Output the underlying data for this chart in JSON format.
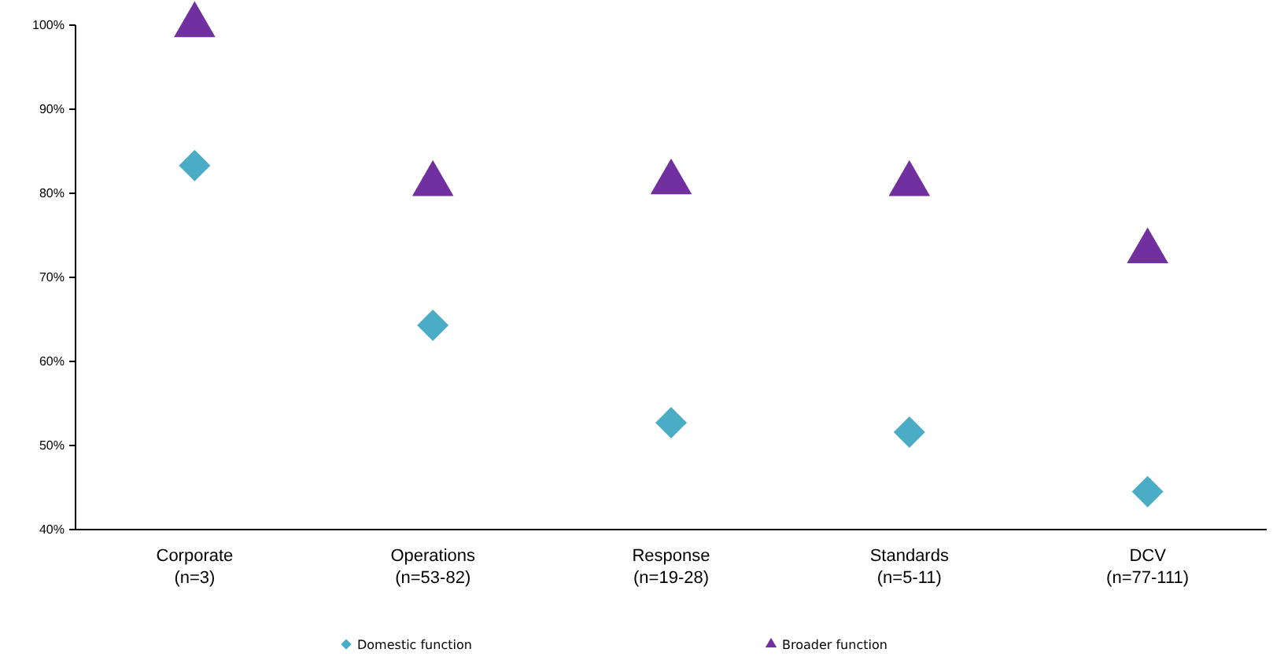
{
  "chart_data": {
    "type": "scatter",
    "categories": [
      "Corporate\n(n=3)",
      "Operations\n(n=53-82)",
      "Response\n(n=19-28)",
      "Standards\n(n=5-11)",
      "DCV\n(n=77-111)"
    ],
    "series": [
      {
        "name": "Domestic function",
        "color": "#4bacc6",
        "marker": "diamond",
        "values": [
          83.3,
          64.3,
          52.7,
          51.6,
          44.5
        ]
      },
      {
        "name": "Broader function",
        "color": "#7030a0",
        "marker": "triangle",
        "values": [
          100,
          81.1,
          81.3,
          81.1,
          73.1
        ]
      }
    ],
    "ylim": [
      40,
      100
    ],
    "yticks": [
      {
        "value": 40,
        "label": "40%"
      },
      {
        "value": 50,
        "label": "50%"
      },
      {
        "value": 60,
        "label": "60%"
      },
      {
        "value": 70,
        "label": "70%"
      },
      {
        "value": 80,
        "label": "80%"
      },
      {
        "value": 90,
        "label": "90%"
      },
      {
        "value": 100,
        "label": "100%"
      }
    ],
    "grid": false,
    "legend": "bottom"
  }
}
